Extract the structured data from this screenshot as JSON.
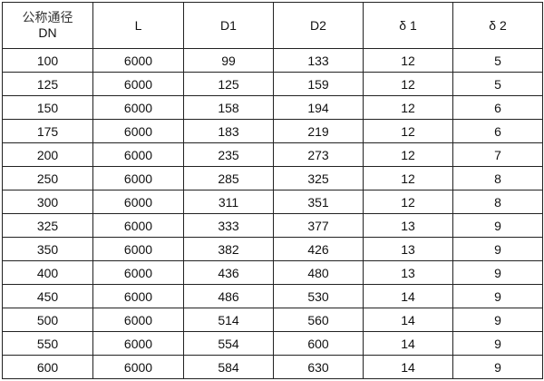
{
  "table": {
    "headers": [
      {
        "line1": "公称通径",
        "line2": "DN"
      },
      {
        "line1": "L"
      },
      {
        "line1": "D1"
      },
      {
        "line1": "D2"
      },
      {
        "line1": "δ 1"
      },
      {
        "line1": "δ 2"
      }
    ],
    "rows": [
      [
        "100",
        "6000",
        "99",
        "133",
        "12",
        "5"
      ],
      [
        "125",
        "6000",
        "125",
        "159",
        "12",
        "5"
      ],
      [
        "150",
        "6000",
        "158",
        "194",
        "12",
        "6"
      ],
      [
        "175",
        "6000",
        "183",
        "219",
        "12",
        "6"
      ],
      [
        "200",
        "6000",
        "235",
        "273",
        "12",
        "7"
      ],
      [
        "250",
        "6000",
        "285",
        "325",
        "12",
        "8"
      ],
      [
        "300",
        "6000",
        "311",
        "351",
        "12",
        "8"
      ],
      [
        "325",
        "6000",
        "333",
        "377",
        "13",
        "9"
      ],
      [
        "350",
        "6000",
        "382",
        "426",
        "13",
        "9"
      ],
      [
        "400",
        "6000",
        "436",
        "480",
        "13",
        "9"
      ],
      [
        "450",
        "6000",
        "486",
        "530",
        "14",
        "9"
      ],
      [
        "500",
        "6000",
        "514",
        "560",
        "14",
        "9"
      ],
      [
        "550",
        "6000",
        "554",
        "600",
        "14",
        "9"
      ],
      [
        "600",
        "6000",
        "584",
        "630",
        "14",
        "9"
      ]
    ]
  }
}
